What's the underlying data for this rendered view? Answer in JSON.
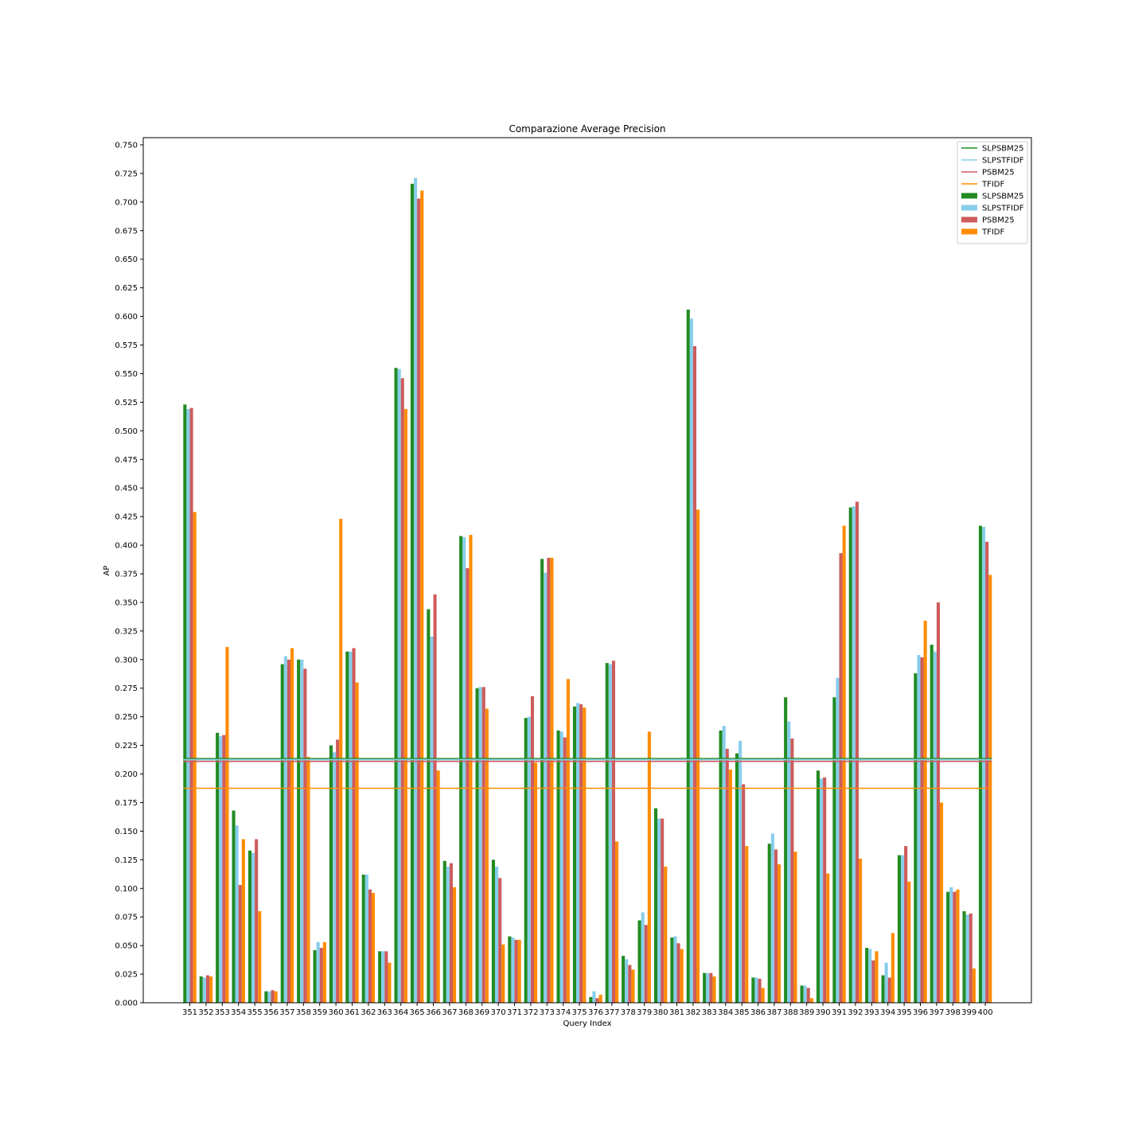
{
  "chart_data": {
    "type": "bar",
    "title": "Comparazione Average Precision",
    "xlabel": "Query Index",
    "ylabel": "AP",
    "ylim": [
      0,
      0.75
    ],
    "yticks": [
      "0.000",
      "0.025",
      "0.050",
      "0.075",
      "0.100",
      "0.125",
      "0.150",
      "0.175",
      "0.200",
      "0.225",
      "0.250",
      "0.275",
      "0.300",
      "0.325",
      "0.350",
      "0.375",
      "0.400",
      "0.425",
      "0.450",
      "0.475",
      "0.500",
      "0.525",
      "0.550",
      "0.575",
      "0.600",
      "0.625",
      "0.650",
      "0.675",
      "0.700",
      "0.725",
      "0.750"
    ],
    "categories": [
      "351",
      "352",
      "353",
      "354",
      "355",
      "356",
      "357",
      "358",
      "359",
      "360",
      "361",
      "362",
      "363",
      "364",
      "365",
      "366",
      "367",
      "368",
      "369",
      "370",
      "371",
      "372",
      "373",
      "374",
      "375",
      "376",
      "377",
      "378",
      "379",
      "380",
      "381",
      "382",
      "383",
      "384",
      "385",
      "386",
      "387",
      "388",
      "389",
      "390",
      "391",
      "392",
      "393",
      "394",
      "395",
      "396",
      "397",
      "398",
      "399",
      "400"
    ],
    "series": [
      {
        "name": "SLPSBM25",
        "color": "#228b22",
        "values": [
          0.523,
          0.023,
          0.236,
          0.168,
          0.133,
          0.01,
          0.296,
          0.3,
          0.046,
          0.225,
          0.307,
          0.112,
          0.045,
          0.555,
          0.716,
          0.344,
          0.124,
          0.408,
          0.275,
          0.125,
          0.058,
          0.249,
          0.388,
          0.238,
          0.259,
          0.005,
          0.297,
          0.041,
          0.072,
          0.17,
          0.057,
          0.606,
          0.026,
          0.238,
          0.218,
          0.022,
          0.139,
          0.267,
          0.015,
          0.203,
          0.267,
          0.433,
          0.048,
          0.024,
          0.129,
          0.288,
          0.313,
          0.097,
          0.08,
          0.417
        ]
      },
      {
        "name": "SLPSTFIDF",
        "color": "#87ceeb",
        "values": [
          0.519,
          0.022,
          0.233,
          0.155,
          0.131,
          0.01,
          0.303,
          0.3,
          0.053,
          0.219,
          0.307,
          0.112,
          0.045,
          0.554,
          0.721,
          0.32,
          0.119,
          0.407,
          0.276,
          0.119,
          0.057,
          0.25,
          0.376,
          0.237,
          0.262,
          0.01,
          0.296,
          0.038,
          0.079,
          0.161,
          0.058,
          0.598,
          0.026,
          0.242,
          0.229,
          0.022,
          0.148,
          0.246,
          0.015,
          0.196,
          0.284,
          0.434,
          0.047,
          0.035,
          0.129,
          0.304,
          0.307,
          0.101,
          0.077,
          0.416
        ]
      },
      {
        "name": "PSBM25",
        "color": "#cd5c5c",
        "values": [
          0.52,
          0.024,
          0.234,
          0.103,
          0.143,
          0.011,
          0.3,
          0.292,
          0.048,
          0.23,
          0.31,
          0.099,
          0.045,
          0.546,
          0.703,
          0.357,
          0.122,
          0.38,
          0.276,
          0.109,
          0.055,
          0.268,
          0.389,
          0.232,
          0.261,
          0.004,
          0.299,
          0.033,
          0.068,
          0.161,
          0.052,
          0.574,
          0.026,
          0.222,
          0.191,
          0.021,
          0.134,
          0.231,
          0.013,
          0.197,
          0.393,
          0.438,
          0.037,
          0.022,
          0.137,
          0.302,
          0.35,
          0.097,
          0.078,
          0.403
        ]
      },
      {
        "name": "TFIDF",
        "color": "#ff8c00",
        "values": [
          0.429,
          0.023,
          0.311,
          0.143,
          0.08,
          0.01,
          0.31,
          0.215,
          0.053,
          0.423,
          0.28,
          0.096,
          0.035,
          0.519,
          0.71,
          0.203,
          0.101,
          0.409,
          0.257,
          0.051,
          0.055,
          0.21,
          0.389,
          0.283,
          0.258,
          0.007,
          0.141,
          0.029,
          0.237,
          0.119,
          0.047,
          0.431,
          0.023,
          0.204,
          0.137,
          0.013,
          0.121,
          0.132,
          0.004,
          0.113,
          0.417,
          0.126,
          0.045,
          0.061,
          0.106,
          0.334,
          0.175,
          0.099,
          0.03,
          0.374
        ]
      }
    ],
    "mean_lines": [
      {
        "name": "SLPSBM25",
        "color": "#228b22",
        "value": 0.2135
      },
      {
        "name": "SLPSTFIDF",
        "color": "#87ceeb",
        "value": 0.2125
      },
      {
        "name": "PSBM25",
        "color": "#cd5c5c",
        "value": 0.211
      },
      {
        "name": "TFIDF",
        "color": "#ff8c00",
        "value": 0.1875
      }
    ],
    "legend": {
      "placement": "top-right",
      "line_labels": [
        "SLPSBM25",
        "SLPSTFIDF",
        "PSBM25",
        "TFIDF"
      ],
      "bar_labels": [
        "SLPSBM25",
        "SLPSTFIDF",
        "PSBM25",
        "TFIDF"
      ]
    },
    "grid": false
  }
}
